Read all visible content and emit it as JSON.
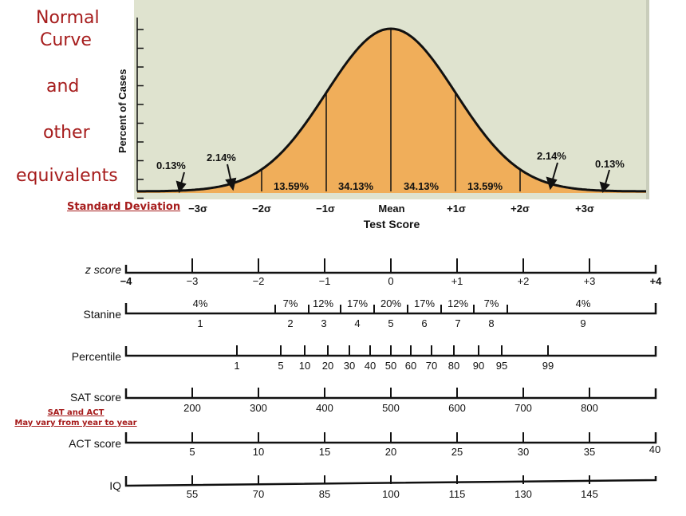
{
  "title": {
    "lines": [
      "Normal",
      "Curve",
      "and",
      "other",
      "equivalents"
    ]
  },
  "standard_deviation_label": "Standard Deviation",
  "notes": {
    "line1": "SAT and ACT",
    "line2": "May vary from year to year"
  },
  "curve": {
    "ylabel": "Percent of Cases",
    "xlabel": "Test Score",
    "x_ticks": [
      "−3σ",
      "−2σ",
      "−1σ",
      "Mean",
      "+1σ",
      "+2σ",
      "+3σ"
    ],
    "area_labels": [
      "13.59%",
      "34.13%",
      "34.13%",
      "13.59%"
    ],
    "tail_labels": [
      "0.13%",
      "2.14%",
      "2.14%",
      "0.13%"
    ],
    "colors": {
      "fill": "#f0ae5a",
      "background": "#dfe3cf",
      "line": "#111111"
    }
  },
  "scales": {
    "zscore": {
      "label": "z score",
      "ticks": [
        "−4",
        "−3",
        "−2",
        "−1",
        "0",
        "+1",
        "+2",
        "+3",
        "+4"
      ]
    },
    "stanine": {
      "label": "Stanine",
      "percents": [
        "4%",
        "7%",
        "12%",
        "17%",
        "20%",
        "17%",
        "12%",
        "7%",
        "4%"
      ],
      "numbers": [
        "1",
        "2",
        "3",
        "4",
        "5",
        "6",
        "7",
        "8",
        "9"
      ]
    },
    "percentile": {
      "label": "Percentile",
      "ticks": [
        "1",
        "5",
        "10",
        "20",
        "30",
        "40",
        "50",
        "60",
        "70",
        "80",
        "90",
        "95",
        "99"
      ]
    },
    "sat": {
      "label": "SAT score",
      "ticks": [
        "200",
        "300",
        "400",
        "500",
        "600",
        "700",
        "800"
      ]
    },
    "act": {
      "label": "ACT score",
      "ticks": [
        "5",
        "10",
        "15",
        "20",
        "25",
        "30",
        "35",
        "40"
      ]
    },
    "iq": {
      "label": "IQ",
      "ticks": [
        "55",
        "70",
        "85",
        "100",
        "115",
        "130",
        "145"
      ]
    }
  }
}
